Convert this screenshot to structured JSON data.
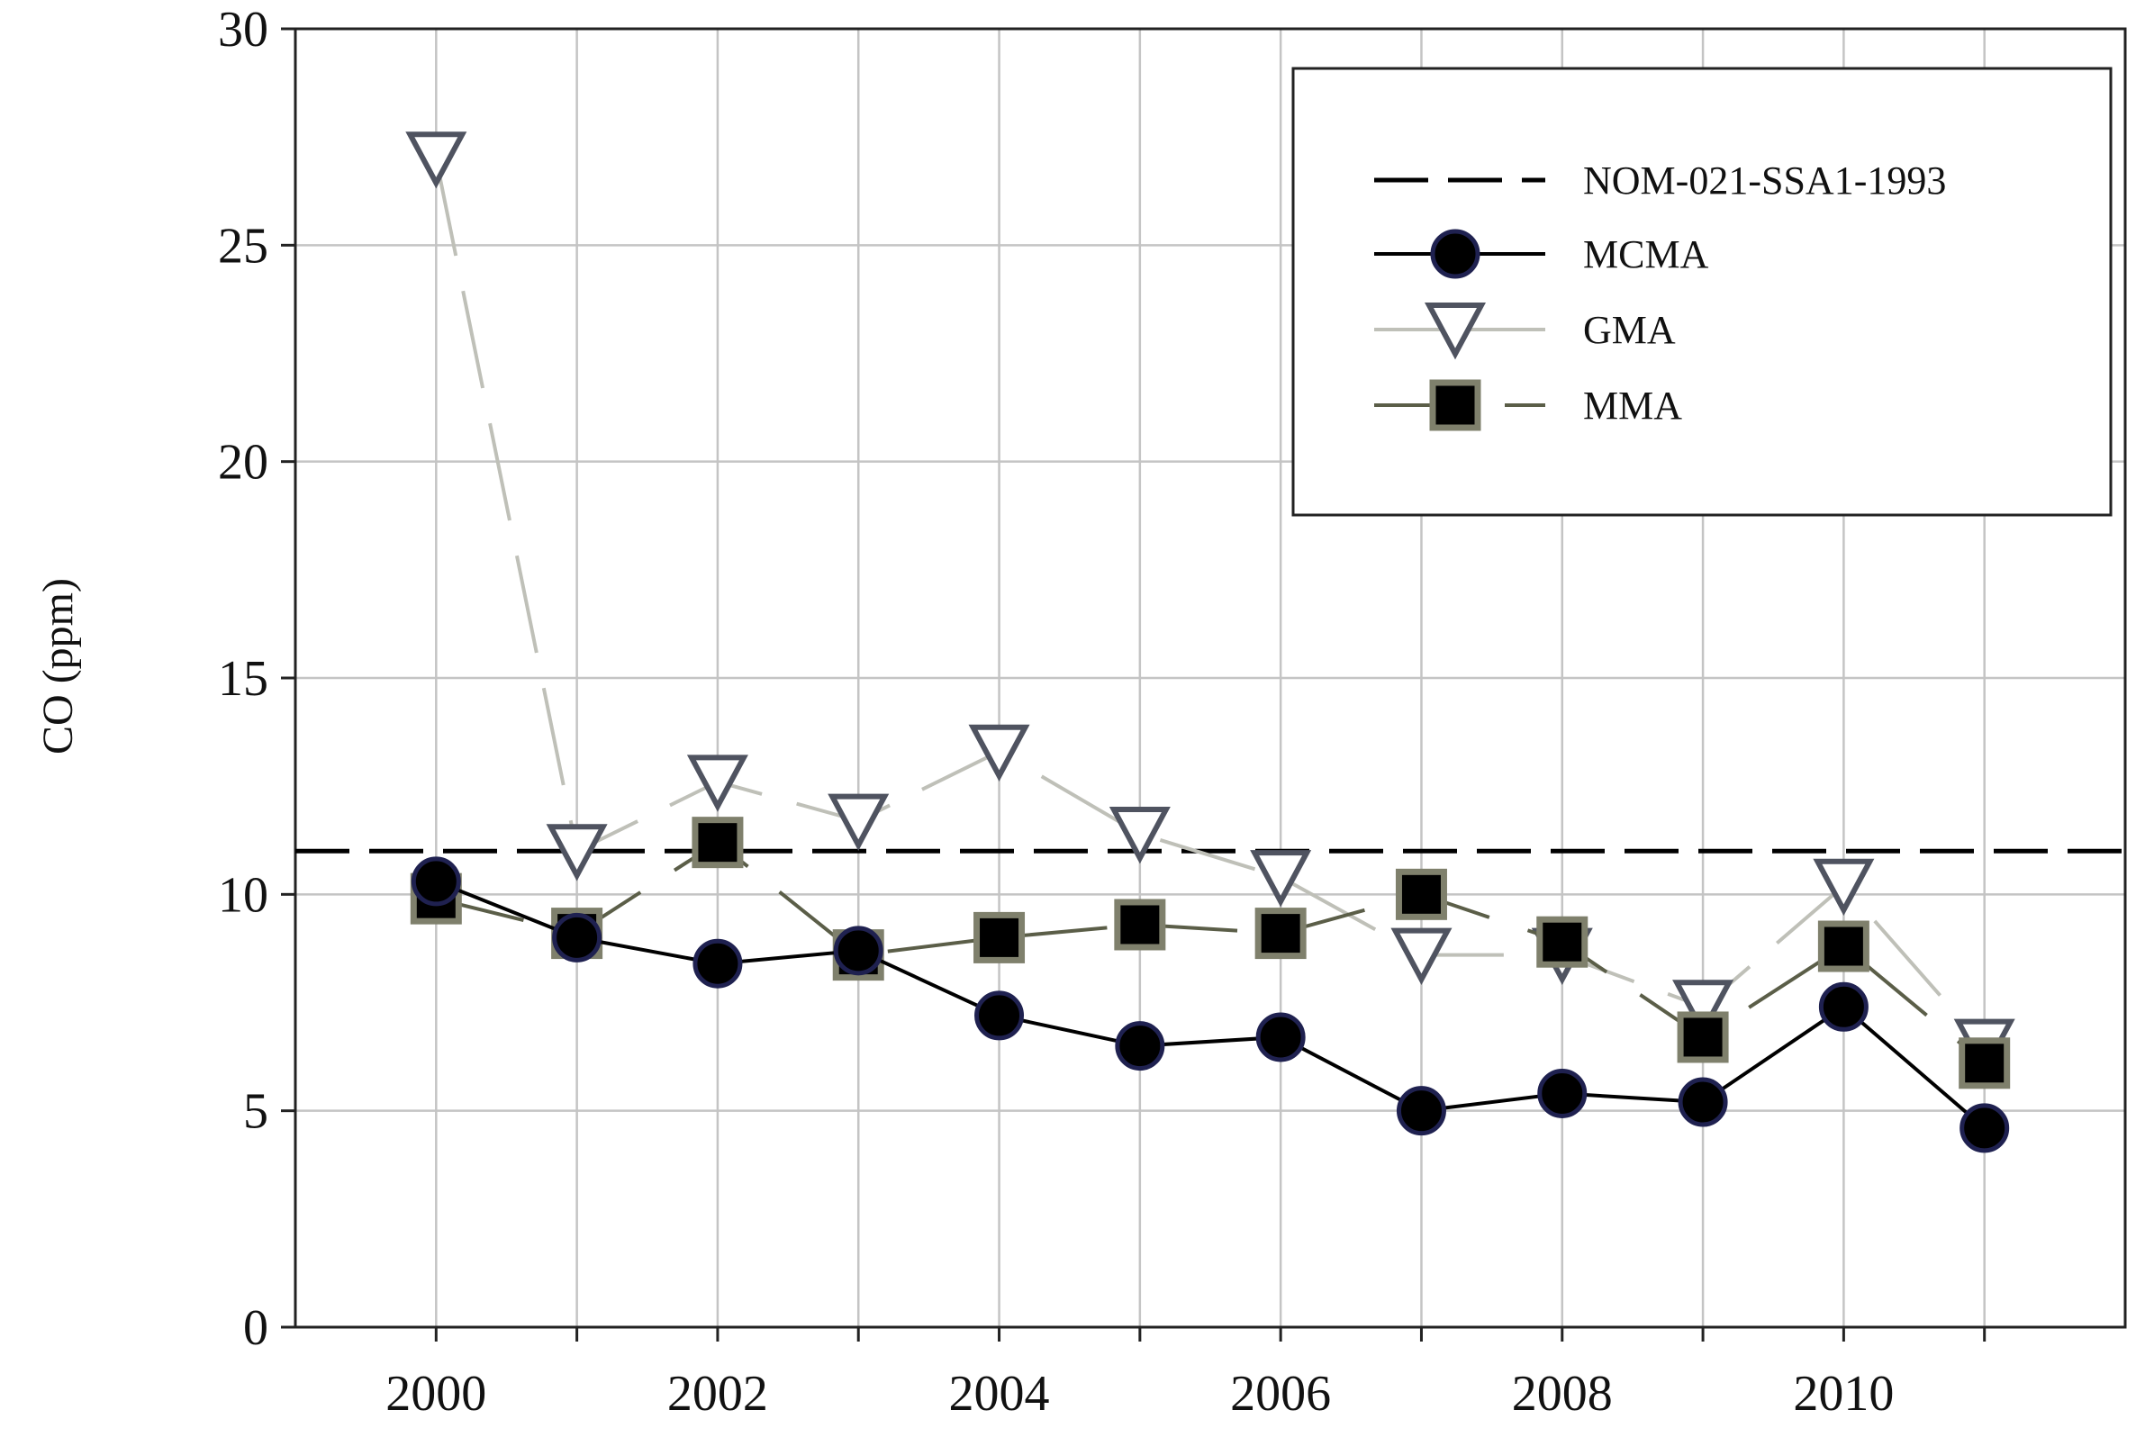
{
  "chart_data": {
    "type": "line",
    "title": "",
    "xlabel": "",
    "ylabel": "CO (ppm)",
    "xlim": [
      1999,
      2012
    ],
    "ylim": [
      0,
      30
    ],
    "x_ticks": [
      2000,
      2002,
      2004,
      2006,
      2008,
      2010
    ],
    "y_ticks": [
      0,
      5,
      10,
      15,
      20,
      25,
      30
    ],
    "grid": true,
    "legend_position": "top-right",
    "x": [
      2000,
      2001,
      2002,
      2003,
      2004,
      2005,
      2006,
      2007,
      2008,
      2009,
      2010,
      2011
    ],
    "reference_line": {
      "name": "NOM-021-SSA1-1993",
      "value": 11,
      "color": "#000000"
    },
    "series": [
      {
        "name": "MCMA",
        "marker": "circle",
        "line_color": "#000000",
        "marker_fill": "#000000",
        "marker_stroke": "#1f2150",
        "values": [
          10.3,
          9.0,
          8.4,
          8.7,
          7.2,
          6.5,
          6.7,
          5.0,
          5.4,
          5.2,
          7.4,
          4.6
        ]
      },
      {
        "name": "GMA",
        "marker": "triangle-down",
        "line_color": "#bfc0b8",
        "marker_fill": "#ffffff",
        "marker_stroke": "#4f5360",
        "values": [
          27.0,
          11.0,
          12.6,
          11.7,
          13.3,
          11.4,
          10.4,
          8.6,
          8.6,
          7.4,
          10.2,
          6.5
        ]
      },
      {
        "name": "MMA",
        "marker": "square",
        "line_color": "#5b5e48",
        "marker_fill": "#000000",
        "marker_stroke": "#7f806c",
        "values": [
          9.9,
          9.1,
          11.2,
          8.6,
          9.0,
          9.3,
          9.1,
          10.0,
          8.9,
          6.7,
          8.8,
          6.1
        ]
      }
    ]
  }
}
